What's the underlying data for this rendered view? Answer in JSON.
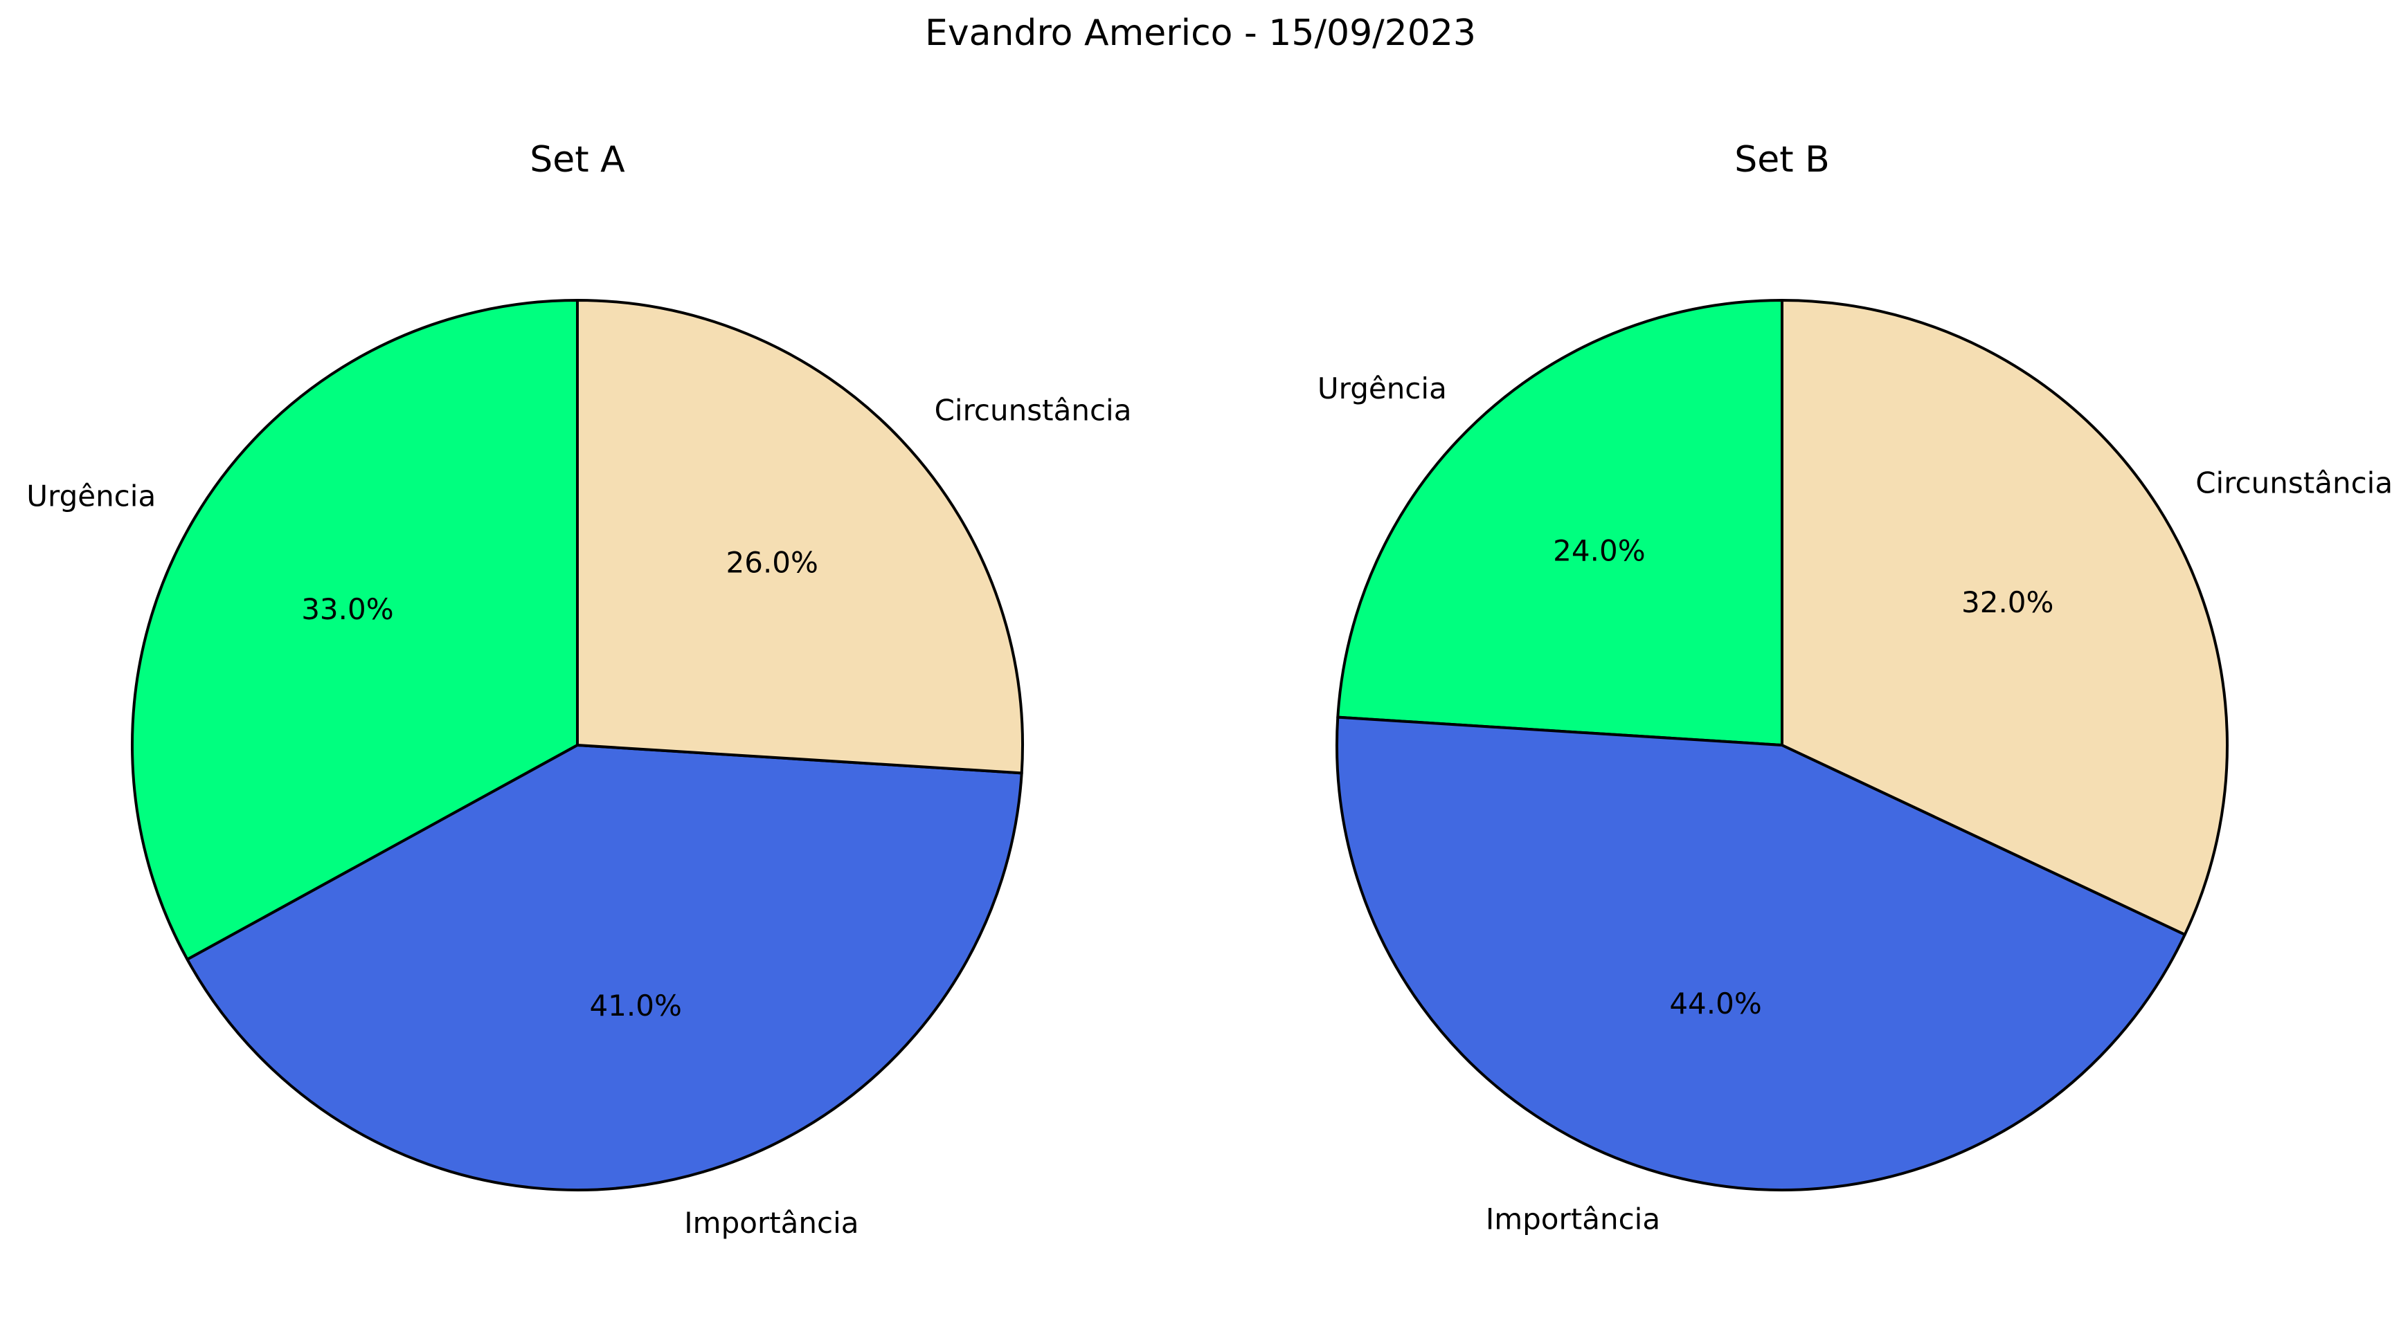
{
  "figure": {
    "title": "Evandro Americo - 15/09/2023"
  },
  "chart_data": [
    {
      "type": "pie",
      "title": "Set A",
      "labels": [
        "Urgência",
        "Importância",
        "Circunstância"
      ],
      "values": [
        33.0,
        41.0,
        26.0
      ],
      "percent_labels": [
        "33.0%",
        "41.0%",
        "26.0%"
      ],
      "colors": [
        "#00FF7F",
        "#4169E1",
        "#F5DEB3"
      ],
      "start_angle_deg": 90,
      "direction": "counterclockwise",
      "edge_color": "#000000"
    },
    {
      "type": "pie",
      "title": "Set B",
      "labels": [
        "Urgência",
        "Importância",
        "Circunstância"
      ],
      "values": [
        24.0,
        44.0,
        32.0
      ],
      "percent_labels": [
        "24.0%",
        "44.0%",
        "32.0%"
      ],
      "colors": [
        "#00FF7F",
        "#4169E1",
        "#F5DEB3"
      ],
      "start_angle_deg": 90,
      "direction": "counterclockwise",
      "edge_color": "#000000"
    }
  ]
}
